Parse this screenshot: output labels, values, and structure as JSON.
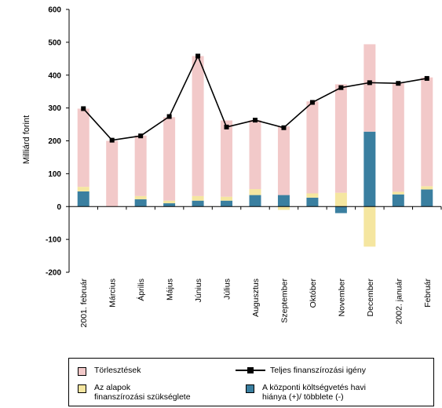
{
  "chart_data": {
    "type": "bar",
    "ylabel": "Milliárd forint",
    "ylim": [
      -200,
      600
    ],
    "yticks": [
      600,
      500,
      400,
      300,
      200,
      100,
      0,
      -100,
      -200
    ],
    "categories": [
      "2001. február",
      "Március",
      "Április",
      "Május",
      "Június",
      "Július",
      "Augusztus",
      "Szeptember",
      "Október",
      "November",
      "December",
      "2002. január",
      "Február"
    ],
    "series": [
      {
        "name": "A központi költségvetés havi hiánya (+)/ többlete (-)",
        "kind": "bar",
        "color": "#3a7fa0",
        "values": [
          46,
          0,
          22,
          10,
          18,
          18,
          35,
          35,
          27,
          -20,
          228,
          37,
          52
        ]
      },
      {
        "name": "Az alapok finanszírozási szükséglete",
        "kind": "bar",
        "color": "#f5e6a0",
        "values": [
          14,
          0,
          10,
          8,
          14,
          12,
          18,
          -10,
          13,
          42,
          -122,
          8,
          10
        ]
      },
      {
        "name": "Törlesztések",
        "kind": "bar",
        "color": "#f2c9c9",
        "values": [
          238,
          200,
          184,
          254,
          426,
          232,
          210,
          209,
          280,
          330,
          266,
          330,
          331
        ]
      },
      {
        "name": "Teljes finanszírozási igény",
        "kind": "line",
        "color": "#000000",
        "values": [
          298,
          202,
          215,
          274,
          458,
          242,
          263,
          240,
          317,
          362,
          377,
          375,
          390
        ]
      }
    ],
    "legend": "bottom"
  },
  "legend": {
    "torlesztesek": "Törlesztések",
    "teljes": "Teljes finanszírozási igény",
    "alapok_1": "Az alapok",
    "alapok_2": "finanszírozási szükséglete",
    "koltsegvetes_1": "A központi költségvetés havi",
    "koltsegvetes_2": "hiánya (+)/ többlete (-)"
  }
}
